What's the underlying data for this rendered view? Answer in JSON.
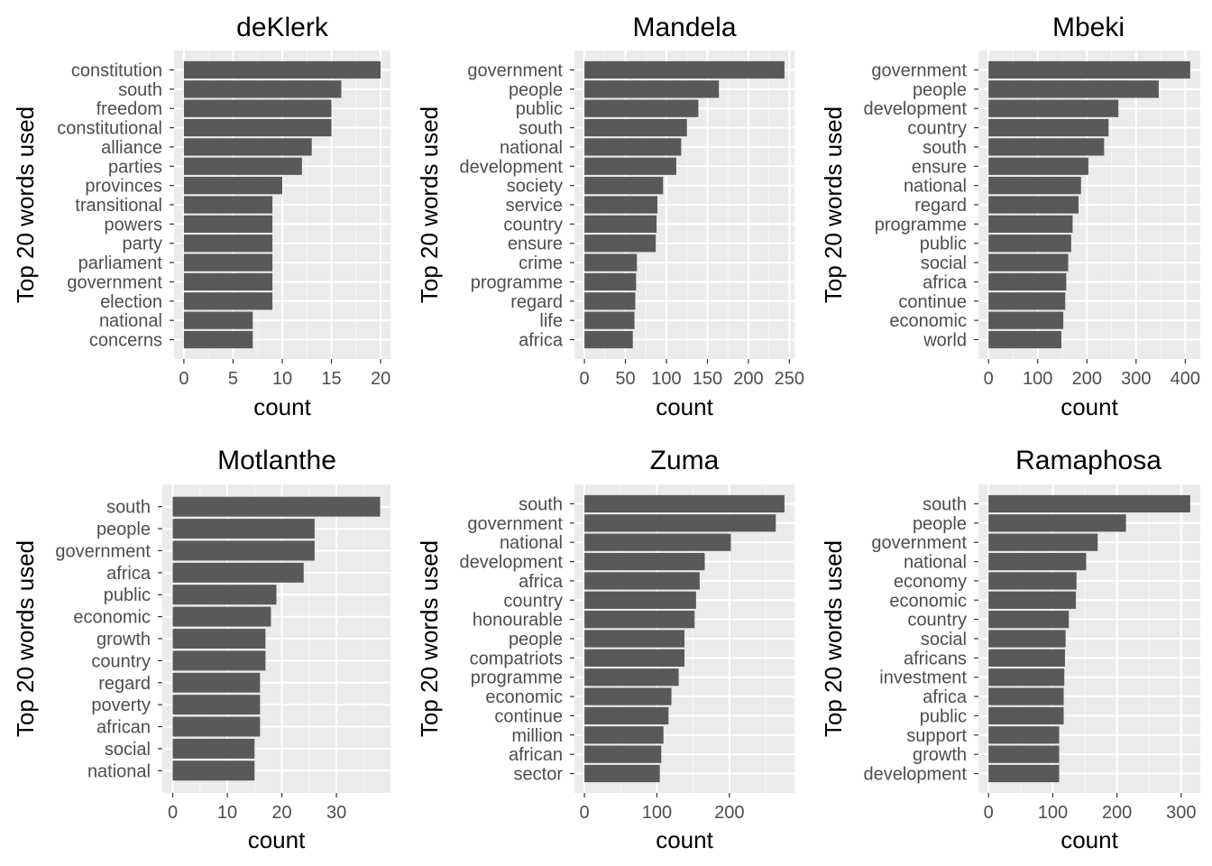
{
  "chart_data": [
    {
      "type": "bar",
      "orientation": "horizontal",
      "title": "deKlerk",
      "xlabel": "count",
      "ylabel": "Top 20 words used",
      "xlim": [
        -1,
        21
      ],
      "xticks": [
        0,
        5,
        10,
        15,
        20
      ],
      "categories": [
        "constitution",
        "south",
        "freedom",
        "constitutional",
        "alliance",
        "parties",
        "provinces",
        "transitional",
        "powers",
        "party",
        "parliament",
        "government",
        "election",
        "national",
        "concerns"
      ],
      "values": [
        20,
        16,
        15,
        15,
        13,
        12,
        10,
        9,
        9,
        9,
        9,
        9,
        9,
        7,
        7
      ]
    },
    {
      "type": "bar",
      "orientation": "horizontal",
      "title": "Mandela",
      "xlabel": "count",
      "ylabel": "Top 20 words used",
      "xlim": [
        -12.2,
        256.2
      ],
      "xticks": [
        0,
        50,
        100,
        150,
        200,
        250
      ],
      "categories": [
        "government",
        "people",
        "public",
        "south",
        "national",
        "development",
        "society",
        "service",
        "country",
        "ensure",
        "crime",
        "programme",
        "regard",
        "life",
        "africa"
      ],
      "values": [
        244,
        164,
        139,
        125,
        118,
        112,
        96,
        89,
        88,
        87,
        64,
        63,
        62,
        61,
        59
      ]
    },
    {
      "type": "bar",
      "orientation": "horizontal",
      "title": "Mbeki",
      "xlabel": "count",
      "ylabel": "Top 20 words used",
      "xlim": [
        -20.5,
        430.5
      ],
      "xticks": [
        0,
        100,
        200,
        300,
        400
      ],
      "categories": [
        "government",
        "people",
        "development",
        "country",
        "south",
        "ensure",
        "national",
        "regard",
        "programme",
        "public",
        "social",
        "africa",
        "continue",
        "economic",
        "world"
      ],
      "values": [
        410,
        346,
        264,
        244,
        235,
        203,
        188,
        183,
        171,
        168,
        162,
        158,
        156,
        152,
        148
      ]
    },
    {
      "type": "bar",
      "orientation": "horizontal",
      "title": "Motlanthe",
      "xlabel": "count",
      "ylabel": "Top 20 words used",
      "xlim": [
        -1.9,
        39.9
      ],
      "xticks": [
        0,
        10,
        20,
        30
      ],
      "categories": [
        "south",
        "people",
        "government",
        "africa",
        "public",
        "economic",
        "growth",
        "country",
        "regard",
        "poverty",
        "african",
        "social",
        "national"
      ],
      "values": [
        38,
        26,
        26,
        24,
        19,
        18,
        17,
        17,
        16,
        16,
        16,
        15,
        15
      ]
    },
    {
      "type": "bar",
      "orientation": "horizontal",
      "title": "Zuma",
      "xlabel": "count",
      "ylabel": "Top 20 words used",
      "xlim": [
        -13.8,
        289.8
      ],
      "xticks": [
        0,
        100,
        200
      ],
      "categories": [
        "south",
        "government",
        "national",
        "development",
        "africa",
        "country",
        "honourable",
        "people",
        "compatriots",
        "programme",
        "economic",
        "continue",
        "million",
        "african",
        "sector"
      ],
      "values": [
        276,
        264,
        202,
        166,
        159,
        154,
        152,
        138,
        138,
        130,
        120,
        116,
        109,
        106,
        104
      ]
    },
    {
      "type": "bar",
      "orientation": "horizontal",
      "title": "Ramaphosa",
      "xlabel": "count",
      "ylabel": "Top 20 words used",
      "xlim": [
        -15.7,
        329.7
      ],
      "xticks": [
        0,
        100,
        200,
        300
      ],
      "categories": [
        "south",
        "people",
        "government",
        "national",
        "economy",
        "economic",
        "country",
        "social",
        "africans",
        "investment",
        "africa",
        "public",
        "support",
        "growth",
        "development"
      ],
      "values": [
        314,
        214,
        170,
        152,
        137,
        136,
        125,
        120,
        119,
        118,
        117,
        117,
        110,
        110,
        110
      ]
    }
  ]
}
